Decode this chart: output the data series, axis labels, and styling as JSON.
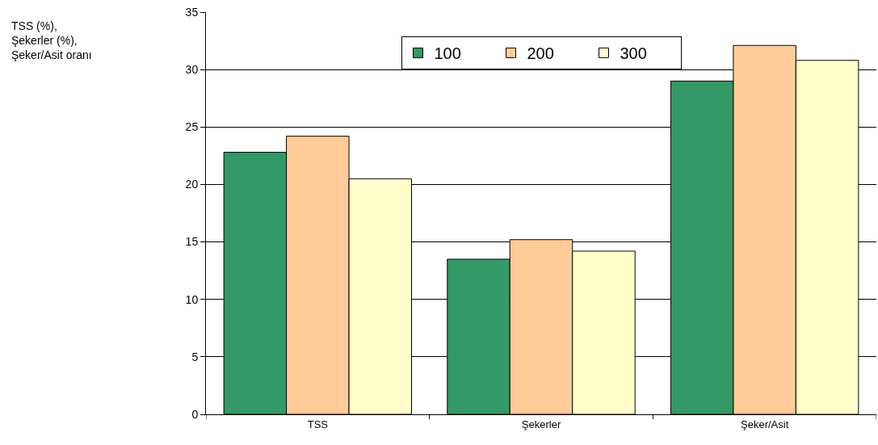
{
  "chart_data": {
    "type": "bar",
    "annotations": [
      "TSS (%),\nŞekerler (%),\nŞeker/Asit oranı"
    ],
    "categories": [
      "TSS",
      "Şekerler",
      "Şeker/Asit"
    ],
    "series": [
      {
        "name": "100",
        "color": "#339966",
        "values": [
          22.8,
          13.5,
          29.0
        ]
      },
      {
        "name": "200",
        "color": "#ffcc99",
        "values": [
          24.2,
          15.2,
          32.1
        ]
      },
      {
        "name": "300",
        "color": "#ffffcc",
        "values": [
          20.5,
          14.2,
          30.8
        ]
      }
    ],
    "ylim": [
      0,
      35
    ],
    "yticks": [
      0,
      5,
      10,
      15,
      20,
      25,
      30,
      35
    ],
    "grid": "y",
    "legend": "top"
  }
}
